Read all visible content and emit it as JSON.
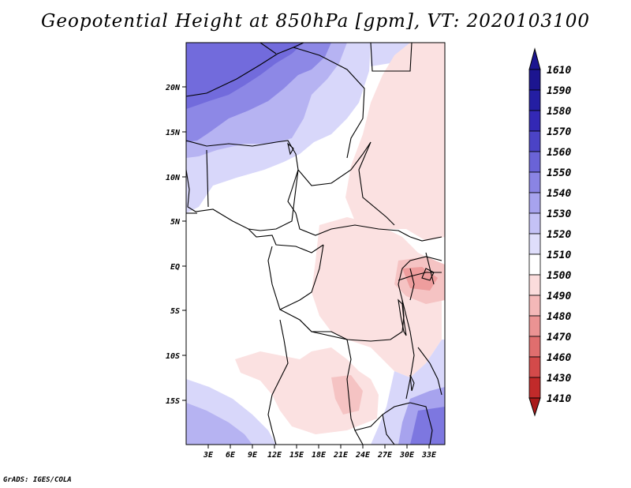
{
  "title": "Geopotential Height at 850hPa [gpm], VT: 2020103100",
  "footer": "GrADS: IGES/COLA",
  "map": {
    "lat_labels": [
      "20N",
      "15N",
      "10N",
      "5N",
      "EQ",
      "5S",
      "10S",
      "15S"
    ],
    "lon_labels": [
      "3E",
      "6E",
      "9E",
      "12E",
      "15E",
      "18E",
      "21E",
      "24E",
      "27E",
      "30E",
      "33E"
    ]
  },
  "colorbar": {
    "labels": [
      "1610",
      "1590",
      "1580",
      "1570",
      "1560",
      "1550",
      "1540",
      "1530",
      "1520",
      "1510",
      "1500",
      "1490",
      "1480",
      "1470",
      "1460",
      "1430",
      "1410"
    ],
    "colors": [
      "#1c1590",
      "#241ea3",
      "#3328b5",
      "#4b43c6",
      "#6a63d7",
      "#8a84e4",
      "#a7a3ee",
      "#c4c2f6",
      "#dfdefb",
      "#ffffff",
      "#fbdcdc",
      "#f4b8b8",
      "#eb9393",
      "#e06e6e",
      "#d34a4a",
      "#c12a2a",
      "#a81a1a"
    ]
  },
  "colors": {
    "deep_blue": "#6a63d7",
    "mid_blue": "#a7a3ee",
    "light_blue": "#d8d7fa",
    "white": "#ffffff",
    "light_pink": "#fbe1e1",
    "pink": "#f5c3c3",
    "red": "#e89090"
  }
}
